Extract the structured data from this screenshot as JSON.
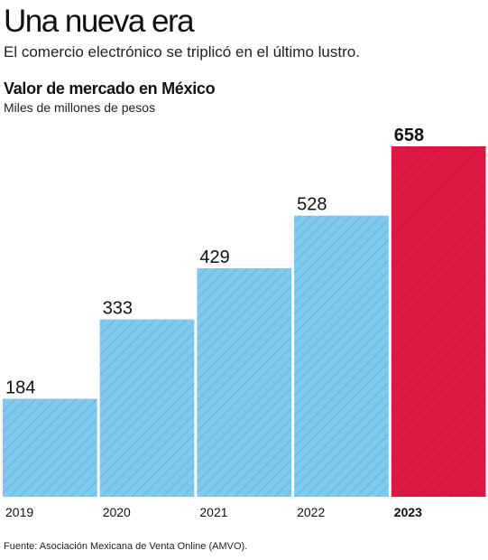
{
  "header": {
    "headline": "Una nueva era",
    "subtitle": "El comercio electrónico se triplicó en el último lustro.",
    "chart_title": "Valor de mercado en México",
    "chart_unit": "Miles de millones de pesos"
  },
  "source": "Fuente: Asociación Mexicana de Venta Online (AMVO).",
  "colors": {
    "bar_default": "#7fcbef",
    "bar_stripe": "#5aa9d4",
    "bar_highlight": "#dc1942",
    "bar_highlight_stripe": "#c4123a",
    "baseline": "#222222"
  },
  "chart_data": {
    "type": "bar",
    "categories": [
      "2019",
      "2020",
      "2021",
      "2022",
      "2023"
    ],
    "values": [
      184,
      333,
      429,
      528,
      658
    ],
    "value_labels": [
      "184",
      "333",
      "429",
      "528",
      "658"
    ],
    "highlight_category": "2023",
    "title": "Valor de mercado en México",
    "ylabel": "Miles de millones de pesos",
    "xlabel": "",
    "ylim": [
      0,
      658
    ],
    "grid": false,
    "legend": "none"
  }
}
